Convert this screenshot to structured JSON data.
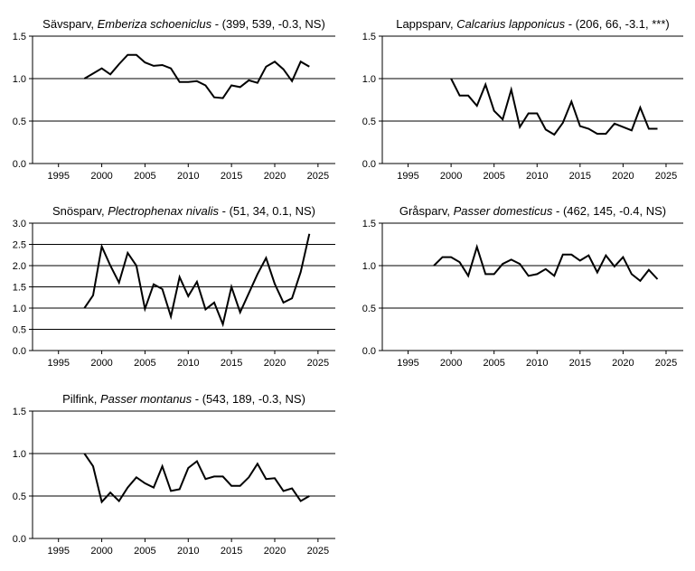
{
  "chart_data": [
    {
      "type": "line",
      "title": {
        "common": "Sävsparv",
        "latin": "Emberiza schoeniclus",
        "stats": " - (399, 539, -0.3, NS)"
      },
      "x": [
        1998,
        1999,
        2000,
        2001,
        2002,
        2003,
        2004,
        2005,
        2006,
        2007,
        2008,
        2009,
        2010,
        2011,
        2012,
        2013,
        2014,
        2015,
        2016,
        2017,
        2018,
        2019,
        2020,
        2021,
        2022,
        2023,
        2024
      ],
      "values": [
        1.0,
        1.06,
        1.12,
        1.05,
        1.17,
        1.28,
        1.28,
        1.19,
        1.15,
        1.16,
        1.12,
        0.96,
        0.96,
        0.97,
        0.92,
        0.78,
        0.77,
        0.92,
        0.9,
        0.98,
        0.95,
        1.14,
        1.2,
        1.11,
        0.97,
        1.2,
        1.14
      ],
      "xlim": [
        1992,
        2027
      ],
      "ylim": [
        0,
        1.5
      ],
      "xticks": [
        "1995",
        "2000",
        "2005",
        "2010",
        "2015",
        "2020",
        "2025"
      ],
      "yticks": [
        "0.0",
        "0.5",
        "1.0",
        "1.5"
      ],
      "grid": true
    },
    {
      "type": "line",
      "title": {
        "common": "Lappsparv",
        "latin": "Calcarius lapponicus",
        "stats": " - (206, 66, -3.1, ***)"
      },
      "x": [
        2000,
        2001,
        2002,
        2003,
        2004,
        2005,
        2006,
        2007,
        2008,
        2009,
        2010,
        2011,
        2012,
        2013,
        2014,
        2015,
        2016,
        2017,
        2018,
        2019,
        2020,
        2021,
        2022,
        2023,
        2024
      ],
      "values": [
        1.0,
        0.8,
        0.8,
        0.68,
        0.93,
        0.62,
        0.52,
        0.87,
        0.43,
        0.59,
        0.59,
        0.4,
        0.34,
        0.48,
        0.73,
        0.44,
        0.41,
        0.35,
        0.35,
        0.47,
        0.43,
        0.39,
        0.66,
        0.41,
        0.41
      ],
      "xlim": [
        1992,
        2027
      ],
      "ylim": [
        0,
        1.5
      ],
      "xticks": [
        "1995",
        "2000",
        "2005",
        "2010",
        "2015",
        "2020",
        "2025"
      ],
      "yticks": [
        "0.0",
        "0.5",
        "1.0",
        "1.5"
      ],
      "grid": true
    },
    {
      "type": "line",
      "title": {
        "common": "Snösparv",
        "latin": "Plectrophenax nivalis",
        "stats": " - (51, 34, 0.1, NS)"
      },
      "x": [
        1998,
        1999,
        2000,
        2001,
        2002,
        2003,
        2004,
        2005,
        2006,
        2007,
        2008,
        2009,
        2010,
        2011,
        2012,
        2013,
        2014,
        2015,
        2016,
        2017,
        2018,
        2019,
        2020,
        2021,
        2022,
        2023,
        2024
      ],
      "values": [
        1.0,
        1.3,
        2.45,
        2.0,
        1.6,
        2.3,
        2.0,
        0.98,
        1.56,
        1.45,
        0.8,
        1.73,
        1.28,
        1.62,
        0.97,
        1.13,
        0.62,
        1.5,
        0.9,
        1.35,
        1.8,
        2.18,
        1.57,
        1.13,
        1.23,
        1.85,
        2.75
      ],
      "xlim": [
        1992,
        2027
      ],
      "ylim": [
        0,
        3.0
      ],
      "xticks": [
        "1995",
        "2000",
        "2005",
        "2010",
        "2015",
        "2020",
        "2025"
      ],
      "yticks": [
        "0.0",
        "0.5",
        "1.0",
        "1.5",
        "2.0",
        "2.5",
        "3.0"
      ],
      "grid": true
    },
    {
      "type": "line",
      "title": {
        "common": "Gråsparv",
        "latin": "Passer domesticus",
        "stats": " - (462, 145, -0.4, NS)"
      },
      "x": [
        1998,
        1999,
        2000,
        2001,
        2002,
        2003,
        2004,
        2005,
        2006,
        2007,
        2008,
        2009,
        2010,
        2011,
        2012,
        2013,
        2014,
        2015,
        2016,
        2017,
        2018,
        2019,
        2020,
        2021,
        2022,
        2023,
        2024
      ],
      "values": [
        1.0,
        1.1,
        1.1,
        1.04,
        0.88,
        1.22,
        0.9,
        0.9,
        1.02,
        1.07,
        1.02,
        0.88,
        0.9,
        0.96,
        0.88,
        1.13,
        1.13,
        1.06,
        1.12,
        0.92,
        1.12,
        0.99,
        1.1,
        0.9,
        0.82,
        0.95,
        0.84
      ],
      "xlim": [
        1992,
        2027
      ],
      "ylim": [
        0,
        1.5
      ],
      "xticks": [
        "1995",
        "2000",
        "2005",
        "2010",
        "2015",
        "2020",
        "2025"
      ],
      "yticks": [
        "0.0",
        "0.5",
        "1.0",
        "1.5"
      ],
      "grid": true
    },
    {
      "type": "line",
      "title": {
        "common": "Pilfink",
        "latin": "Passer montanus",
        "stats": " - (543, 189, -0.3, NS)"
      },
      "x": [
        1998,
        1999,
        2000,
        2001,
        2002,
        2003,
        2004,
        2005,
        2006,
        2007,
        2008,
        2009,
        2010,
        2011,
        2012,
        2013,
        2014,
        2015,
        2016,
        2017,
        2018,
        2019,
        2020,
        2021,
        2022,
        2023,
        2024
      ],
      "values": [
        1.0,
        0.85,
        0.43,
        0.54,
        0.44,
        0.6,
        0.72,
        0.65,
        0.6,
        0.85,
        0.56,
        0.58,
        0.83,
        0.91,
        0.7,
        0.73,
        0.73,
        0.62,
        0.62,
        0.72,
        0.88,
        0.7,
        0.71,
        0.56,
        0.59,
        0.44,
        0.5
      ],
      "xlim": [
        1992,
        2027
      ],
      "ylim": [
        0,
        1.5
      ],
      "xticks": [
        "1995",
        "2000",
        "2005",
        "2010",
        "2015",
        "2020",
        "2025"
      ],
      "yticks": [
        "0.0",
        "0.5",
        "1.0",
        "1.5"
      ],
      "grid": true
    }
  ]
}
